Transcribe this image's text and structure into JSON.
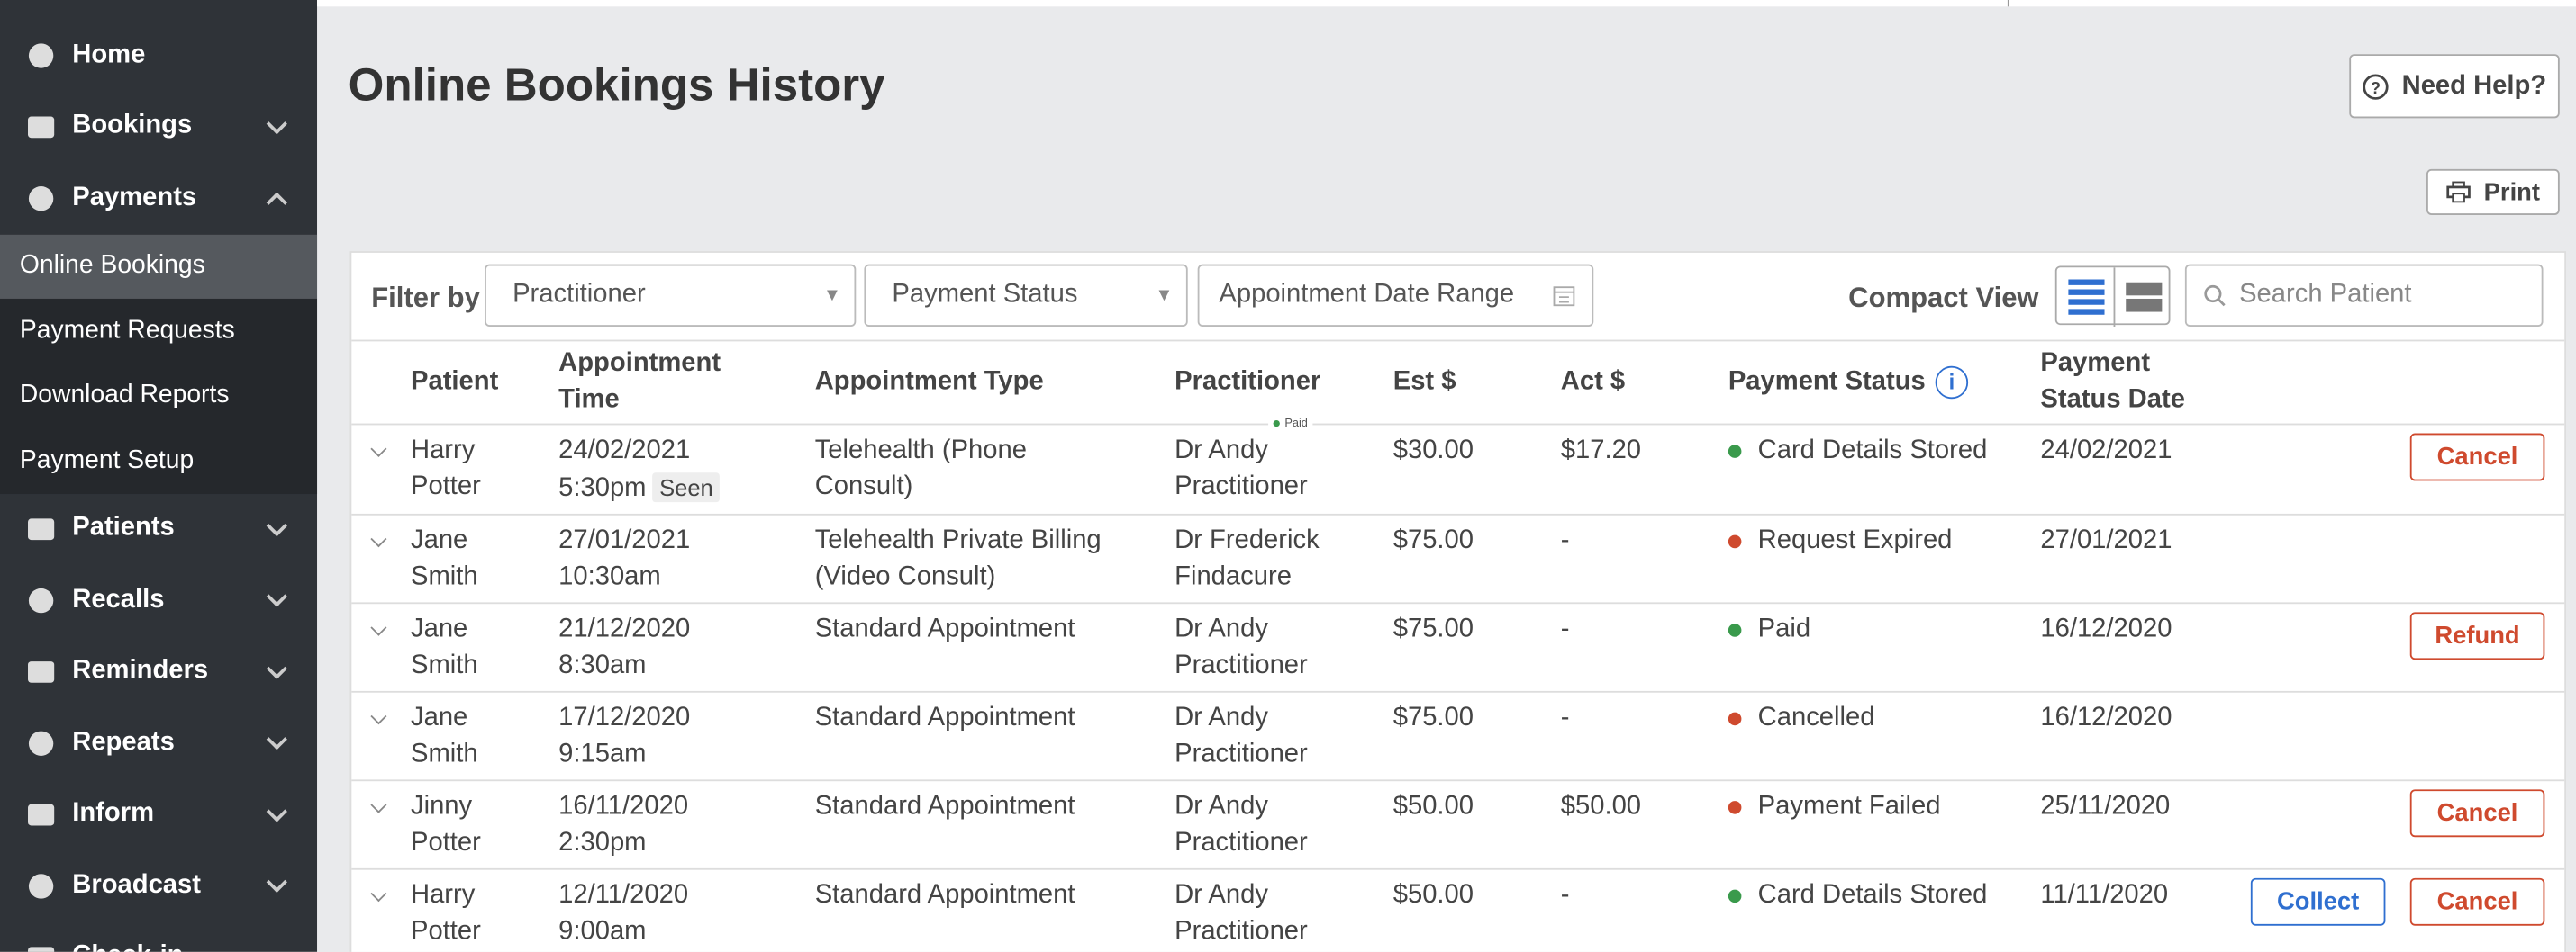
{
  "sidebar": {
    "items": [
      {
        "label": "Home",
        "chevron": ""
      },
      {
        "label": "Bookings",
        "chevron": "down"
      },
      {
        "label": "Payments",
        "chevron": "up"
      },
      {
        "label": "Patients",
        "chevron": "down"
      },
      {
        "label": "Recalls",
        "chevron": "down"
      },
      {
        "label": "Reminders",
        "chevron": "down"
      },
      {
        "label": "Repeats",
        "chevron": "down"
      },
      {
        "label": "Inform",
        "chevron": "down"
      },
      {
        "label": "Broadcast",
        "chevron": "down"
      },
      {
        "label": "Check-in",
        "chevron": "down"
      }
    ],
    "submenu": [
      "Online Bookings",
      "Payment Requests",
      "Download Reports",
      "Payment Setup"
    ]
  },
  "header": {
    "title": "Online Bookings History",
    "help": "Need Help?",
    "print": "Print"
  },
  "filters": {
    "label": "Filter by",
    "practitioner": "Practitioner",
    "payment_status": "Payment Status",
    "date_range": "Appointment Date Range",
    "compact_view": "Compact View",
    "search": "Search Patient"
  },
  "table": {
    "columns": [
      "Patient",
      "Appointment Time",
      "Appointment Type",
      "Practitioner",
      "Est $",
      "Act $",
      "Payment Status",
      "Payment Status Date"
    ],
    "tooltip": "Paid",
    "rows": [
      {
        "patient": "Harry Potter",
        "date": "24/02/2021",
        "time": "5:30pm",
        "badge": "Seen",
        "type": "Telehealth (Phone Consult)",
        "practitioner": "Dr Andy Practitioner",
        "est": "$30.00",
        "act": "$17.20",
        "status": "Card Details Stored",
        "status_color": "#3a9a4c",
        "status_date": "24/02/2021",
        "actions": [
          {
            "label": "Cancel",
            "color": "#cf4a2e"
          }
        ]
      },
      {
        "patient": "Jane Smith",
        "date": "27/01/2021",
        "time": "10:30am",
        "type": "Telehealth Private Billing (Video Consult)",
        "practitioner": "Dr Frederick Findacure",
        "est": "$75.00",
        "act": "-",
        "status": "Request Expired",
        "status_color": "#cf4a2e",
        "status_date": "27/01/2021",
        "actions": []
      },
      {
        "patient": "Jane Smith",
        "date": "21/12/2020",
        "time": "8:30am",
        "type": "Standard Appointment",
        "practitioner": "Dr Andy Practitioner",
        "est": "$75.00",
        "act": "-",
        "status": "Paid",
        "status_color": "#3a9a4c",
        "status_date": "16/12/2020",
        "actions": [
          {
            "label": "Refund",
            "color": "#cf4a2e"
          }
        ]
      },
      {
        "patient": "Jane Smith",
        "date": "17/12/2020",
        "time": "9:15am",
        "type": "Standard Appointment",
        "practitioner": "Dr Andy Practitioner",
        "est": "$75.00",
        "act": "-",
        "status": "Cancelled",
        "status_color": "#cf4a2e",
        "status_date": "16/12/2020",
        "actions": []
      },
      {
        "patient": "Jinny Potter",
        "date": "16/11/2020",
        "time": "2:30pm",
        "type": "Standard Appointment",
        "practitioner": "Dr Andy Practitioner",
        "est": "$50.00",
        "act": "$50.00",
        "status": "Payment Failed",
        "status_color": "#cf4a2e",
        "status_date": "25/11/2020",
        "actions": [
          {
            "label": "Cancel",
            "color": "#cf4a2e"
          }
        ]
      },
      {
        "patient": "Harry Potter",
        "date": "12/11/2020",
        "time": "9:00am",
        "type": "Standard Appointment",
        "practitioner": "Dr Andy Practitioner",
        "est": "$50.00",
        "act": "-",
        "status": "Card Details Stored",
        "status_color": "#3a9a4c",
        "status_date": "11/11/2020",
        "actions": [
          {
            "label": "Collect",
            "color": "#2f6fd0"
          },
          {
            "label": "Cancel",
            "color": "#cf4a2e"
          }
        ]
      }
    ]
  }
}
